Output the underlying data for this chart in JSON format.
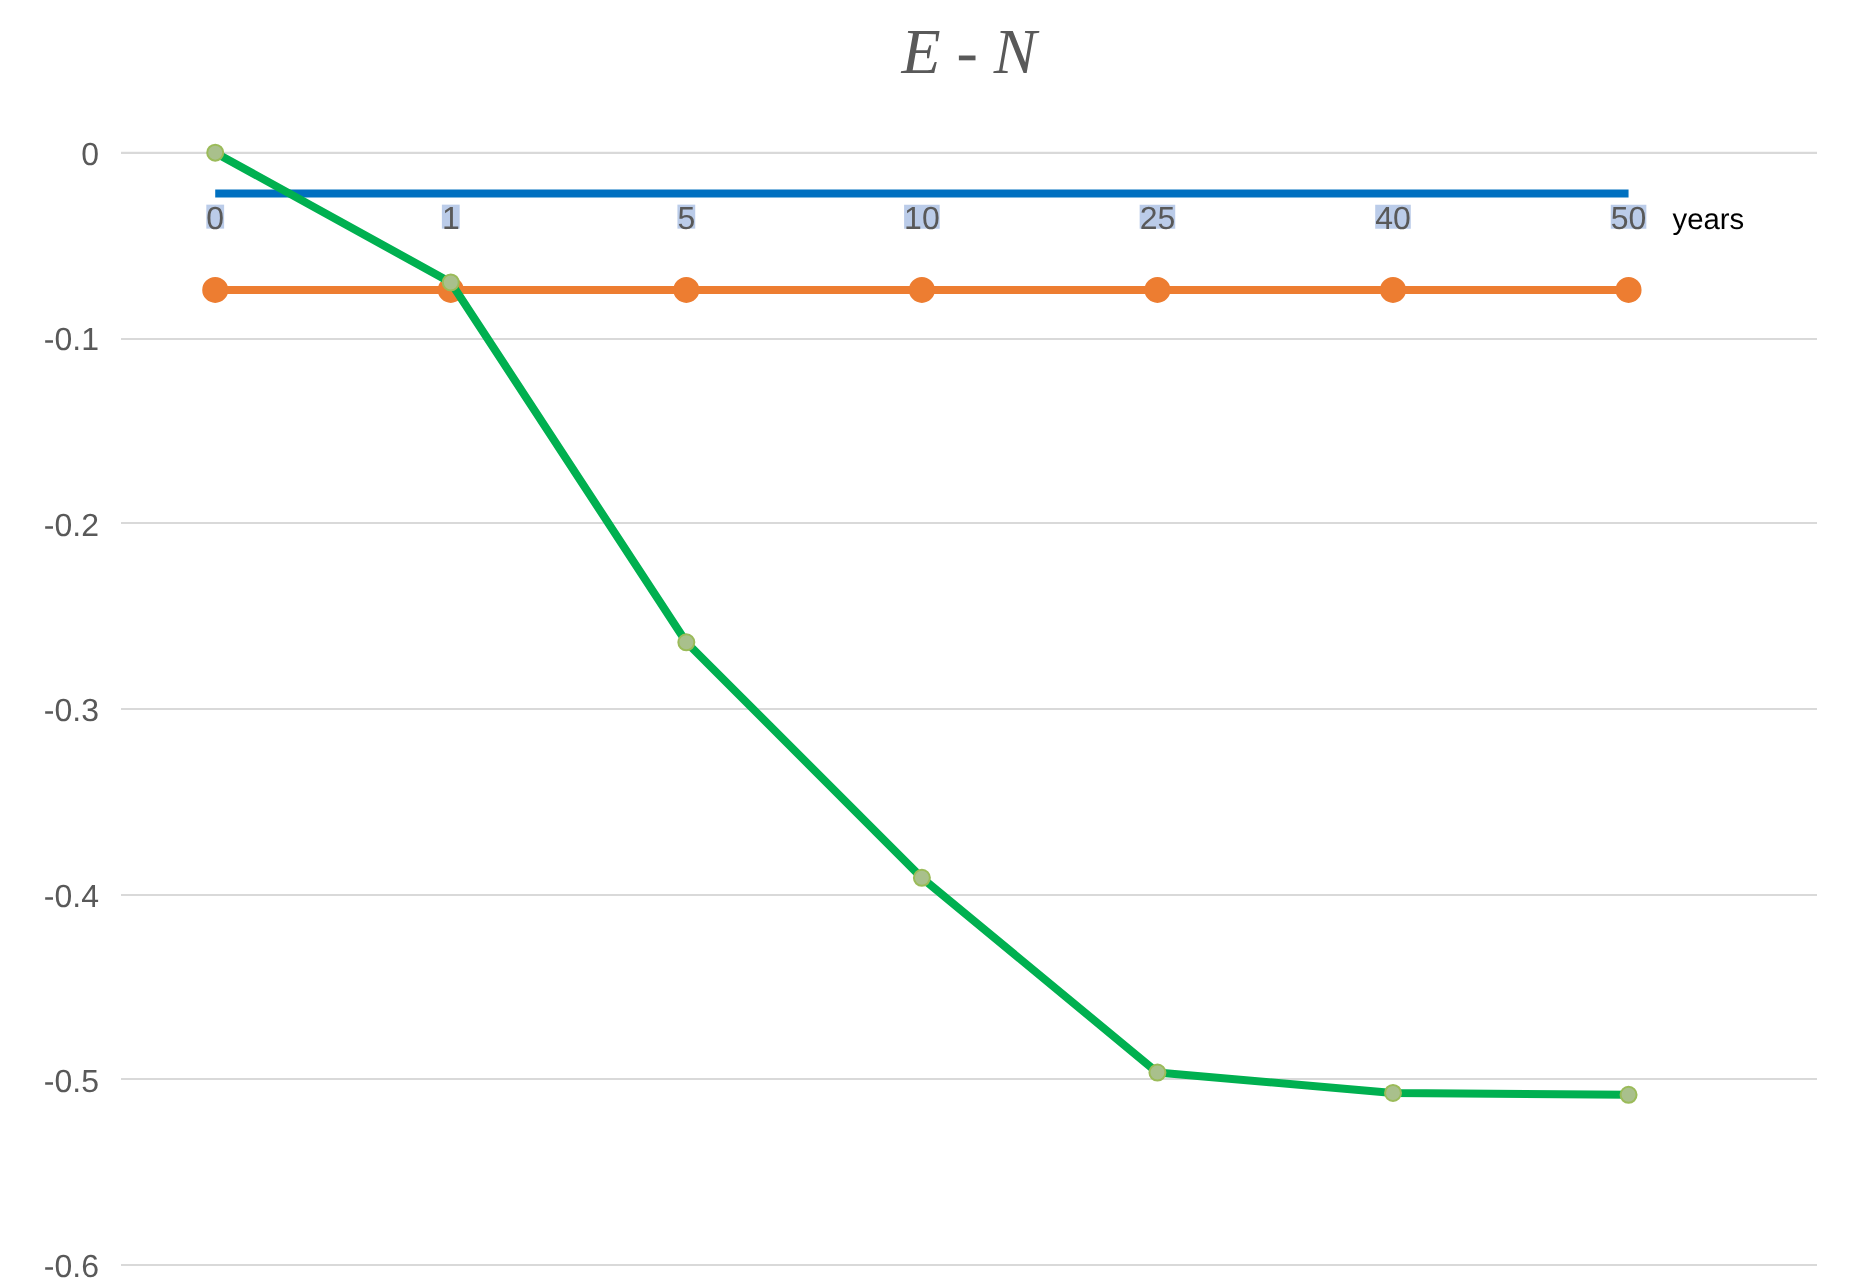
{
  "chart_data": {
    "type": "line",
    "title": "E - N",
    "xlabel": "years",
    "categories": [
      "0",
      "1",
      "5",
      "10",
      "25",
      "40",
      "50"
    ],
    "series": [
      {
        "color": "#0070c0",
        "marker": "none",
        "values": [
          -0.022,
          -0.022,
          -0.022,
          -0.022,
          -0.022,
          -0.022,
          -0.022
        ]
      },
      {
        "color": "#ed7d31",
        "marker": "circle",
        "values": [
          -0.074,
          -0.074,
          -0.074,
          -0.074,
          -0.074,
          -0.074,
          -0.074
        ]
      },
      {
        "color": "#00b050",
        "marker": "circle",
        "values": [
          0,
          -0.07,
          -0.264,
          -0.391,
          -0.496,
          -0.507,
          -0.508
        ]
      }
    ],
    "ylim": [
      -0.6,
      0
    ],
    "yticks": [
      {
        "value": 0,
        "label": "0"
      },
      -0.1,
      -0.2,
      -0.3,
      -0.4,
      -0.5,
      -0.6
    ],
    "grid": "y"
  }
}
